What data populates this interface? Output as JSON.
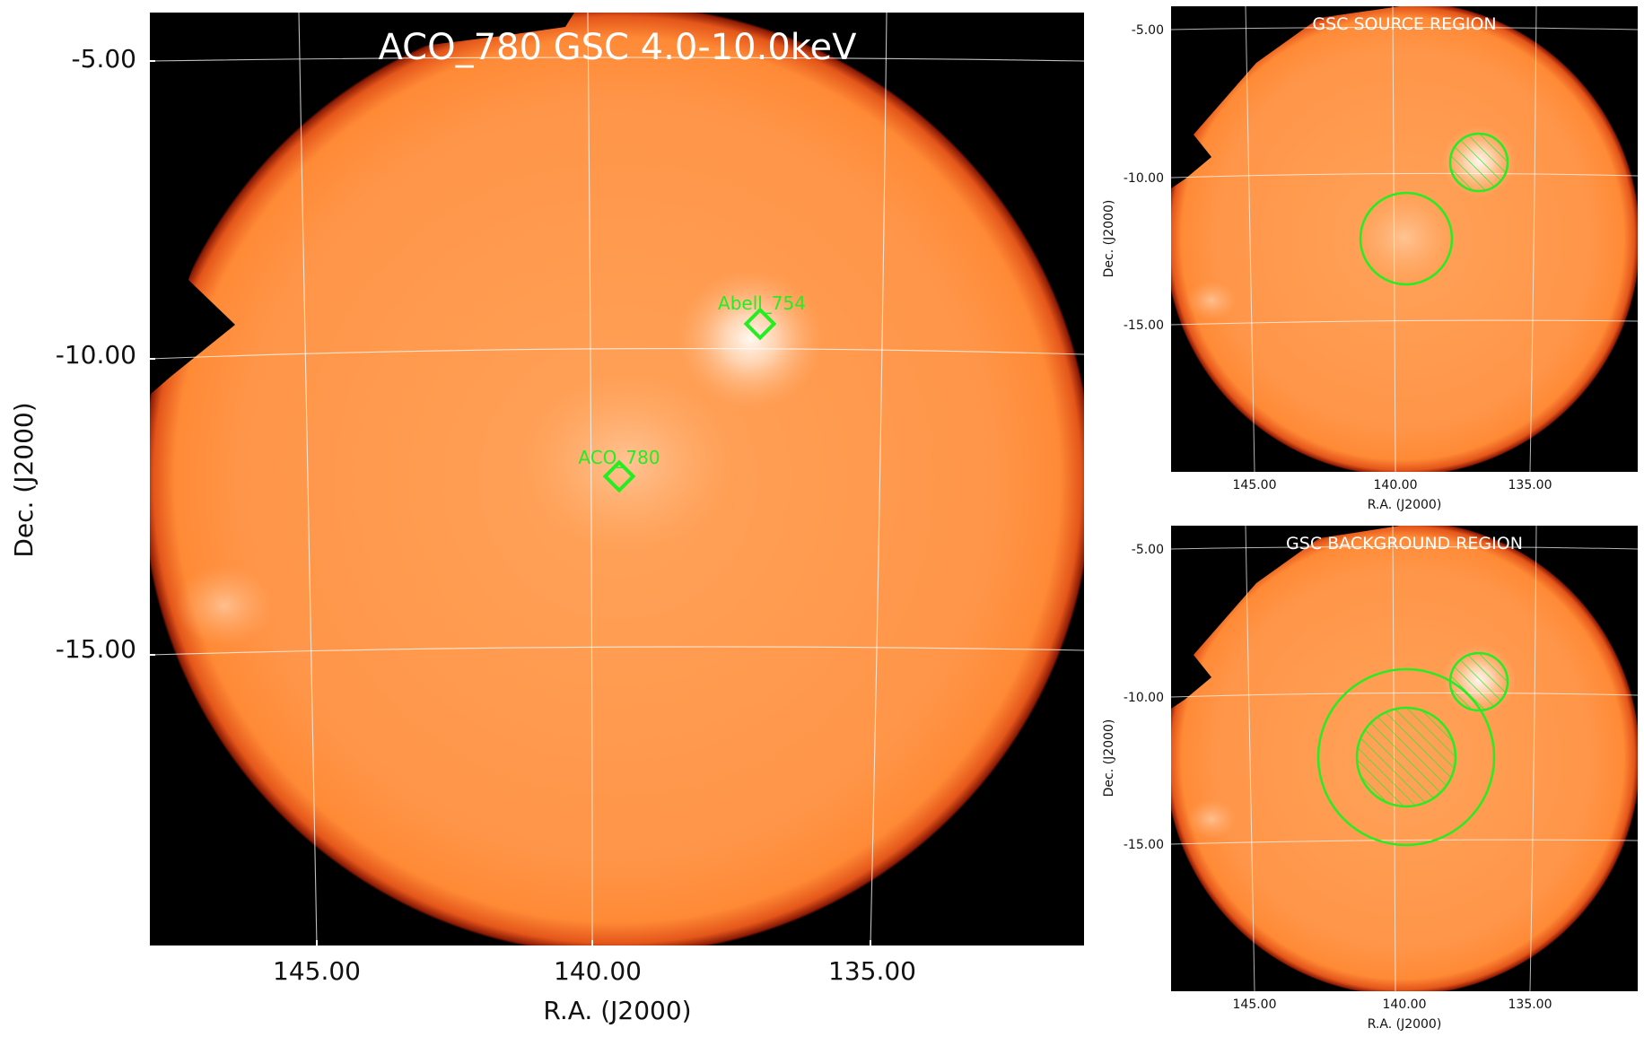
{
  "main": {
    "title": "ACO_780 GSC 4.0-10.0keV",
    "xlabel": "R.A. (J2000)",
    "ylabel": "Dec. (J2000)",
    "xticks": [
      "145.00",
      "140.00",
      "135.00"
    ],
    "yticks": [
      "-5.00",
      "-10.00",
      "-15.00"
    ],
    "markers": [
      {
        "label": "Abell_754"
      },
      {
        "label": "ACO_780"
      }
    ]
  },
  "panel_source": {
    "title": "GSC SOURCE REGION",
    "xlabel": "R.A. (J2000)",
    "ylabel": "Dec. (J2000)",
    "xticks": [
      "145.00",
      "140.00",
      "135.00"
    ],
    "yticks": [
      "-5.00",
      "-10.00",
      "-15.00"
    ]
  },
  "panel_background": {
    "title": "GSC BACKGROUND REGION",
    "xlabel": "R.A. (J2000)",
    "ylabel": "Dec. (J2000)",
    "xticks": [
      "145.00",
      "140.00",
      "135.00"
    ],
    "yticks": [
      "-5.00",
      "-10.00",
      "-15.00"
    ]
  },
  "colors": {
    "disk": "#ff8c3a",
    "background": "#000000",
    "region": "#22ee22",
    "grid": "#ffffff",
    "title_text": "#ffffff"
  }
}
